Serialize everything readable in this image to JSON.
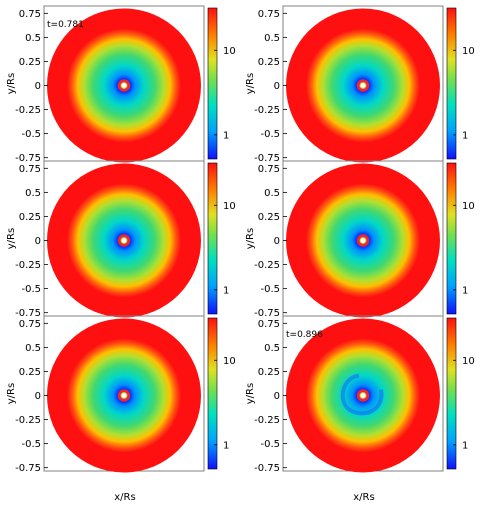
{
  "chart_data": {
    "type": "heatmap",
    "colorbar_scale": "log",
    "colormap": [
      "#1010ff",
      "#00b0ff",
      "#00e0c0",
      "#60e060",
      "#e0e020",
      "#ff9000",
      "#ff1010"
    ],
    "xlabel": "x/Rs",
    "ylabel": "y/Rs",
    "y_ticks": [
      "0.75",
      "0.5",
      "0.25",
      "0",
      "-0.25",
      "-0.5",
      "-0.75"
    ],
    "colorbar_ticks": [
      "1",
      "10"
    ],
    "panels": [
      {
        "time_label": "t=0.781",
        "spiral": false
      },
      {
        "time_label": "",
        "spiral": false
      },
      {
        "time_label": "",
        "spiral": false
      },
      {
        "time_label": "",
        "spiral": false
      },
      {
        "time_label": "",
        "spiral": false
      },
      {
        "time_label": "t=0.896",
        "spiral": true
      }
    ]
  }
}
